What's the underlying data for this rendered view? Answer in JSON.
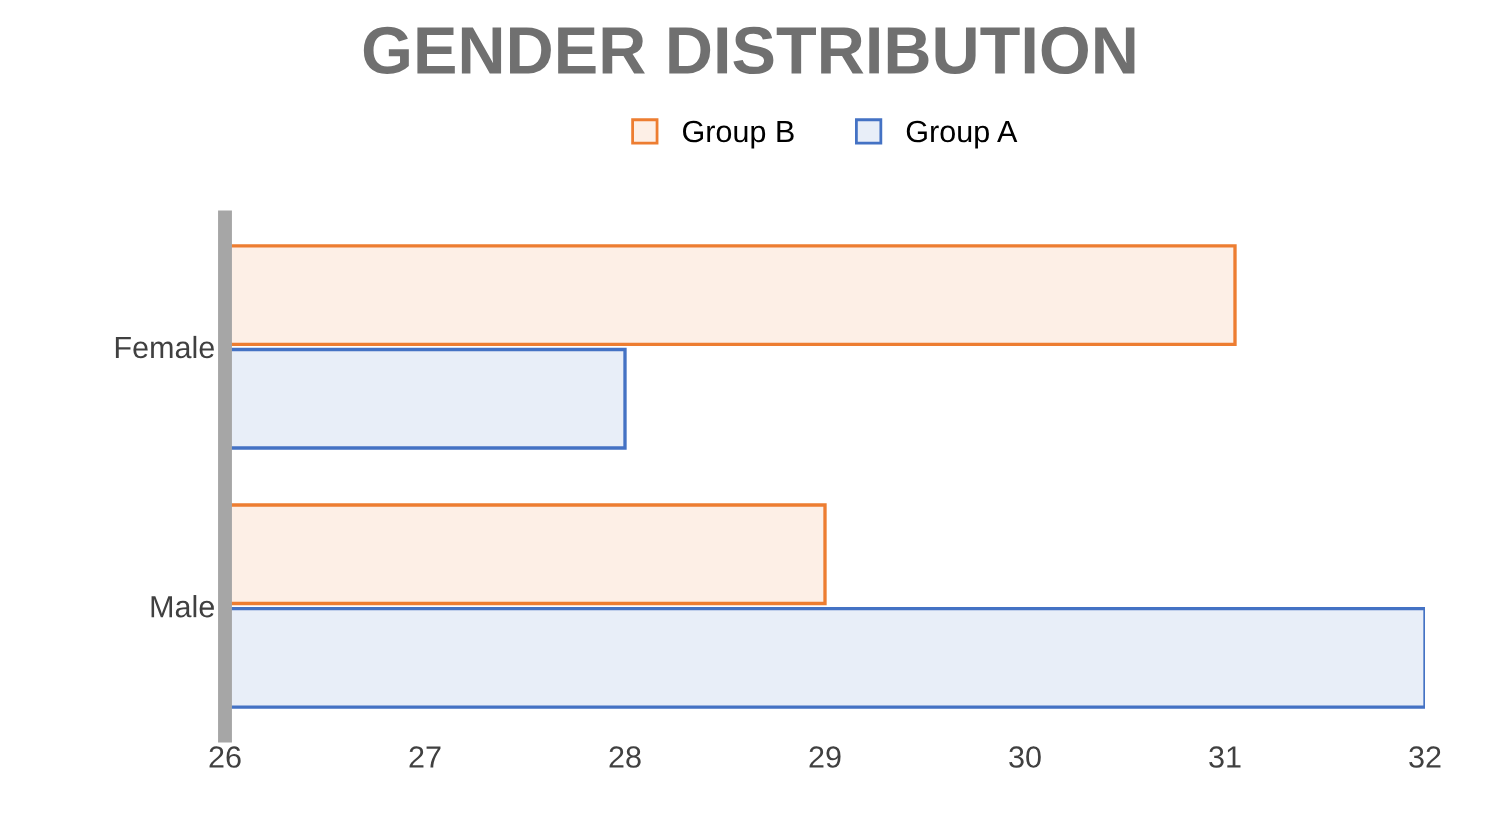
{
  "chart_data": {
    "type": "bar",
    "orientation": "horizontal",
    "title": "GENDER DISTRIBUTION",
    "categories": [
      "Female",
      "Male"
    ],
    "series": [
      {
        "name": "Group B",
        "color": "#ed7d31",
        "values": [
          31.05,
          29.0
        ]
      },
      {
        "name": "Group A",
        "color": "#4472c4",
        "values": [
          28.0,
          32.0
        ]
      }
    ],
    "xlim": [
      26,
      32
    ],
    "xticks": [
      26,
      27,
      28,
      29,
      30,
      31,
      32
    ],
    "grid": false,
    "legend": "top"
  }
}
